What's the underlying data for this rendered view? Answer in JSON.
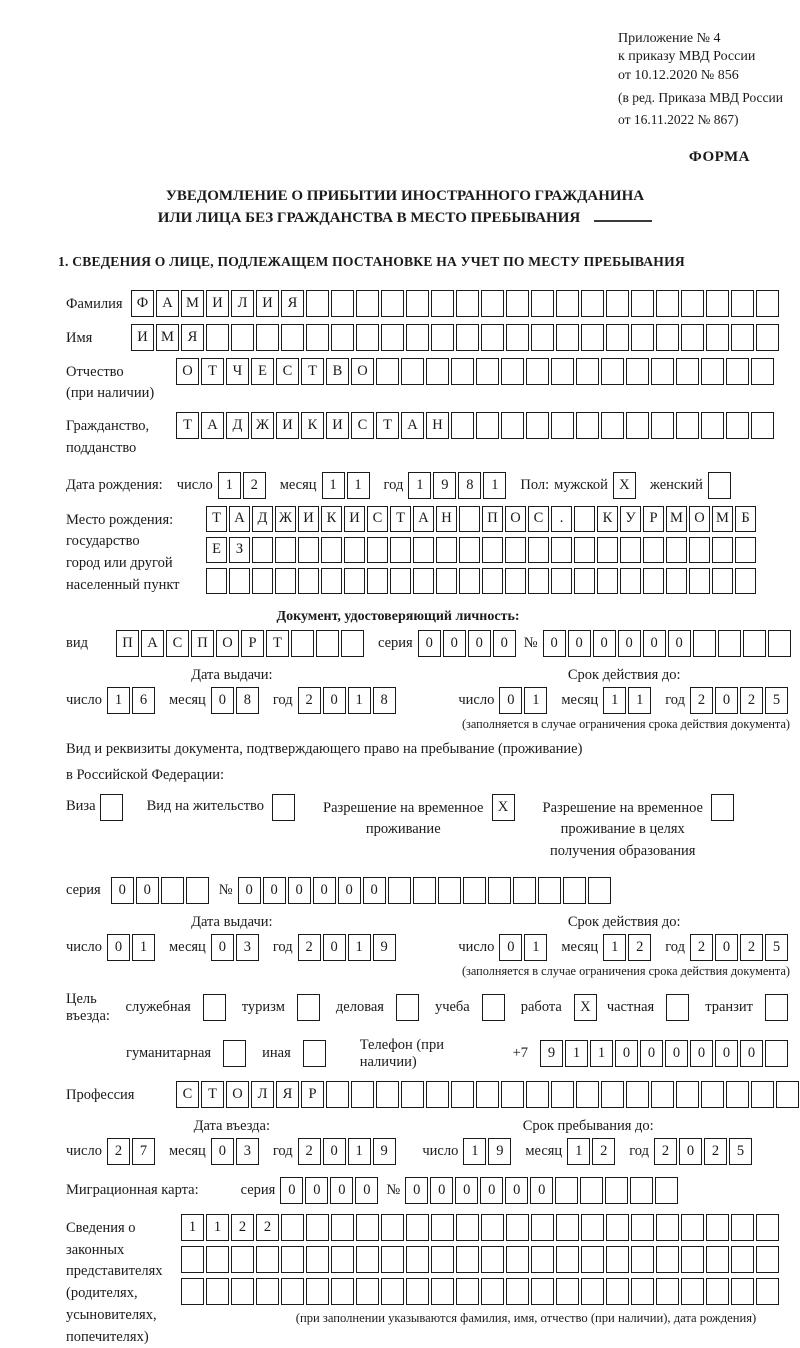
{
  "ink_color": "#1a1a1a",
  "labels": {
    "day": "число",
    "month": "месяц",
    "year": "год",
    "series": "серия",
    "number": "№"
  },
  "header": {
    "line1": "Приложение № 4",
    "line2": "к приказу МВД России",
    "line3": "от 10.12.2020 № 856",
    "line4": "(в ред. Приказа МВД России",
    "line5": "от 16.11.2022 № 867)",
    "form_label": "ФОРМА"
  },
  "title": {
    "line1": "УВЕДОМЛЕНИЕ О ПРИБЫТИИ ИНОСТРАННОГО ГРАЖДАНИНА",
    "line2": "ИЛИ ЛИЦА БЕЗ ГРАЖДАНСТВА В МЕСТО ПРЕБЫВАНИЯ"
  },
  "section1": {
    "heading": "1. СВЕДЕНИЯ О ЛИЦЕ, ПОДЛЕЖАЩЕМ ПОСТАНОВКЕ НА УЧЕТ ПО МЕСТУ ПРЕБЫВАНИЯ"
  },
  "surname": {
    "label": "Фамилия",
    "text": "ФАМИЛИЯ",
    "total": 26
  },
  "firstname": {
    "label": "Имя",
    "text": "ИМЯ",
    "total": 26
  },
  "patronymic": {
    "label1": "Отчество",
    "label2": "(при наличии)",
    "text": "ОТЧЕСТВО",
    "total": 24
  },
  "citizenship": {
    "label1": "Гражданство,",
    "label2": "подданство",
    "text": "ТАДЖИКИСТАН",
    "total": 24
  },
  "birth": {
    "label": "Дата рождения:",
    "day": "12",
    "month": "11",
    "year": "1981",
    "gender_label": "Пол:",
    "male_label": "мужской",
    "male": {
      "text": "X",
      "total": 1
    },
    "female_label": "женский",
    "female": {
      "text": "",
      "total": 1
    }
  },
  "birth_place": {
    "label1": "Место рождения:",
    "label2": "государство",
    "label3": "город или другой",
    "label4": "населенный пункт",
    "row1": {
      "text": "ТАДЖИКИСТАН ПОС. КУРМОМБ",
      "total": 24
    },
    "row2": {
      "text": "ЕЗ",
      "total": 24
    },
    "row3": {
      "text": "",
      "total": 24
    }
  },
  "identity_doc": {
    "heading": "Документ, удостоверяющий личность:",
    "kind_label": "вид",
    "kind": {
      "text": "ПАСПОРТ",
      "total": 10
    },
    "series": {
      "text": "0000",
      "total": 4
    },
    "number": {
      "text": "000000",
      "total": 10
    }
  },
  "doc_dates": {
    "issue_title": "Дата выдачи:",
    "issue_day": "16",
    "issue_month": "08",
    "issue_year": "2018",
    "expiry_title": "Срок действия до:",
    "expiry_day": "01",
    "expiry_month": "11",
    "expiry_year": "2025",
    "note": "(заполняется в случае ограничения срока действия документа)"
  },
  "residence_doc": {
    "intro1": "Вид и реквизиты документа, подтверждающего право на пребывание (проживание)",
    "intro2": "в Российской Федерации:",
    "visa_label": "Виза",
    "visa": {
      "text": "",
      "total": 1
    },
    "residence_permit_label": "Вид на жительство",
    "residence_permit": {
      "text": "",
      "total": 1
    },
    "temp_permit_label1": "Разрешение на временное",
    "temp_permit_label2": "проживание",
    "temp_permit": {
      "text": "X",
      "total": 1
    },
    "edu_permit_label1": "Разрешение на временное",
    "edu_permit_label2": "проживание в целях",
    "edu_permit_label3": "получения образования",
    "edu_permit": {
      "text": "",
      "total": 1
    },
    "series": {
      "text": "00",
      "total": 4
    },
    "number": {
      "text": "000000",
      "total": 15
    }
  },
  "residence_dates": {
    "issue_title": "Дата выдачи:",
    "issue_day": "01",
    "issue_month": "03",
    "issue_year": "2019",
    "expiry_title": "Срок действия до:",
    "expiry_day": "01",
    "expiry_month": "12",
    "expiry_year": "2025",
    "note": "(заполняется в случае ограничения срока действия документа)"
  },
  "purpose": {
    "label": "Цель въезда:",
    "opt_official_label": "служебная",
    "opt_official": {
      "text": "",
      "total": 1
    },
    "opt_tourism_label": "туризм",
    "opt_tourism": {
      "text": "",
      "total": 1
    },
    "opt_business_label": "деловая",
    "opt_business": {
      "text": "",
      "total": 1
    },
    "opt_study_label": "учеба",
    "opt_study": {
      "text": "",
      "total": 1
    },
    "opt_work_label": "работа",
    "opt_work": {
      "text": "X",
      "total": 1
    },
    "opt_private_label": "частная",
    "opt_private": {
      "text": "",
      "total": 1
    },
    "opt_transit_label": "транзит",
    "opt_transit": {
      "text": "",
      "total": 1
    },
    "opt_humanitarian_label": "гуманитарная",
    "opt_humanitarian": {
      "text": "",
      "total": 1
    },
    "opt_other_label": "иная",
    "opt_other": {
      "text": "",
      "total": 1
    },
    "phone_label": "Телефон (при наличии)",
    "phone_prefix": "+7",
    "phone": {
      "text": "911000000",
      "total": 10
    }
  },
  "profession": {
    "label": "Профессия",
    "text": "СТОЛЯР",
    "total": 26
  },
  "entry_dates": {
    "issue_title": "Дата въезда:",
    "issue_day": "27",
    "issue_month": "03",
    "issue_year": "2019",
    "expiry_title": "Срок пребывания до:",
    "expiry_day": "19",
    "expiry_month": "12",
    "expiry_year": "2025"
  },
  "migration_card": {
    "label": "Миграционная карта:",
    "series": {
      "text": "0000",
      "total": 4
    },
    "number": {
      "text": "000000",
      "total": 11
    }
  },
  "representatives": {
    "label1": "Сведения о",
    "label2": "законных",
    "label3": "представителях",
    "label4": "(родителях,",
    "label5": "усыновителях,",
    "label6": "попечителях)",
    "row1": {
      "text": "1122",
      "total": 24
    },
    "row2": {
      "text": "",
      "total": 24
    },
    "row3": {
      "text": "",
      "total": 24
    },
    "note": "(при заполнении указываются фамилия, имя, отчество (при наличии), дата рождения)"
  }
}
